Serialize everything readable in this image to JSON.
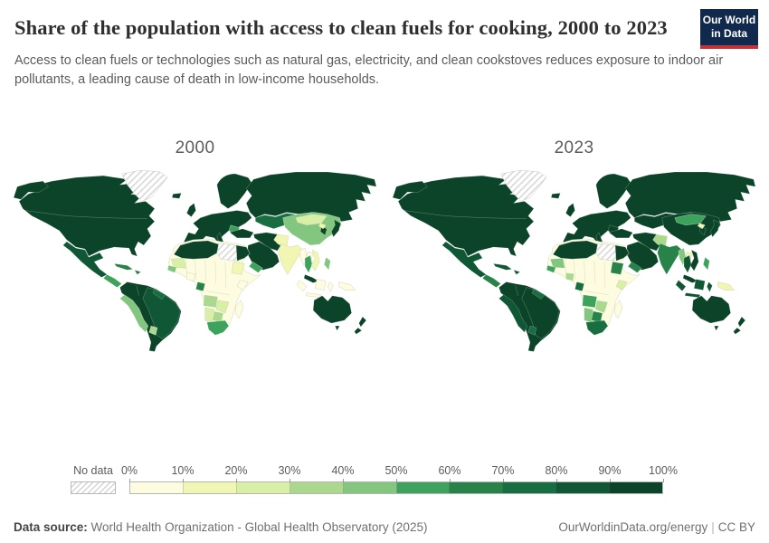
{
  "header": {
    "title": "Share of the population with access to clean fuels for cooking, 2000 to 2023",
    "subtitle": "Access to clean fuels or technologies such as natural gas, electricity, and clean cookstoves reduces exposure to indoor air pollutants, a leading cause of death in low-income households.",
    "logo_line1": "Our World",
    "logo_line2": "in Data",
    "logo_bg": "#12294e",
    "logo_accent": "#c0333b"
  },
  "maps": [
    {
      "year": "2000",
      "fills": {
        "greenland": "nodata",
        "northAmerica": 10,
        "mexico": 9,
        "centralAmerica": 6,
        "caribbean": 7,
        "southAmerica": 10,
        "brazil": 9,
        "guyanas": 8,
        "andes": 5,
        "paraguay": 4,
        "europe": 10,
        "balkans": 6,
        "russia": 10,
        "centralAsia": 8,
        "turkey": 10,
        "iranIraq": 10,
        "saudi": 10,
        "yemen": 6,
        "northAfricaWest": 10,
        "egypt": 10,
        "libya": "nodata",
        "africaBase": 1,
        "mauritania": 3,
        "senegal": 5,
        "ghana": 1,
        "sudan": 2,
        "kenya": 1,
        "gabon": 7,
        "angola": 4,
        "zambiaZimbabwe": 3,
        "namibia": 3,
        "botswana": 4,
        "southAfrica": 6,
        "madagascar": 1,
        "pakistanAfghan": 2,
        "india": 2,
        "china": 5,
        "mongolia": 3,
        "koreaJapan": 10,
        "northKorea": 2,
        "myanmar": 1,
        "thailand": 6,
        "laos": 1,
        "vietnam": 2,
        "malaysia": 10,
        "indonesia": 1,
        "philippines": 5,
        "png": 1,
        "australia": 10,
        "newZealand": 10
      }
    },
    {
      "year": "2023",
      "fills": {
        "greenland": "nodata",
        "northAmerica": 10,
        "mexico": 9,
        "centralAmerica": 7,
        "caribbean": 9,
        "southAmerica": 10,
        "brazil": 10,
        "guyanas": 8,
        "andes": 9,
        "paraguay": 8,
        "europe": 10,
        "balkans": 10,
        "russia": 10,
        "centralAsia": 10,
        "turkey": 10,
        "iranIraq": 10,
        "saudi": 10,
        "yemen": 7,
        "northAfricaWest": 10,
        "egypt": 10,
        "libya": "nodata",
        "africaBase": 1,
        "mauritania": 5,
        "senegal": 6,
        "ghana": 4,
        "sudan": 7,
        "kenya": 3,
        "gabon": 8,
        "angola": 6,
        "zambiaZimbabwe": 4,
        "namibia": 5,
        "botswana": 7,
        "southAfrica": 8,
        "madagascar": 1,
        "pakistanAfghan": 4,
        "india": 7,
        "china": 10,
        "mongolia": 6,
        "koreaJapan": 10,
        "northKorea": 2,
        "myanmar": 5,
        "thailand": 9,
        "laos": 2,
        "vietnam": 10,
        "malaysia": 10,
        "indonesia": 9,
        "philippines": 6,
        "png": 2,
        "australia": 10,
        "newZealand": 10
      }
    }
  ],
  "legend": {
    "no_data_label": "No data",
    "tick_labels": [
      "0%",
      "10%",
      "20%",
      "30%",
      "40%",
      "50%",
      "60%",
      "70%",
      "80%",
      "90%",
      "100%"
    ],
    "bin_colors": [
      "#fdfce1",
      "#f1f7b2",
      "#d8efa6",
      "#abd88d",
      "#82c67f",
      "#3da35c",
      "#27834a",
      "#186d41",
      "#0f5735",
      "#0c4429"
    ]
  },
  "footer": {
    "source_label": "Data source:",
    "source_text": " World Health Organization - Global Health Observatory (2025)",
    "right_link": "OurWorldinData.org/energy",
    "license": "CC BY"
  },
  "chart_data": {
    "type": "choropleth",
    "title": "Share of the population with access to clean fuels for cooking",
    "years": [
      "2000",
      "2023"
    ],
    "unit": "% of population",
    "legend_bins": [
      0,
      10,
      20,
      30,
      40,
      50,
      60,
      70,
      80,
      90,
      100
    ],
    "legend_position": "bottom",
    "no_data_style": "gray diagonal hatching",
    "regions": [
      {
        "name": "United States & Canada",
        "2000": 100,
        "2023": 100
      },
      {
        "name": "Greenland",
        "2000": null,
        "2023": null
      },
      {
        "name": "Mexico",
        "2000": 85,
        "2023": 87
      },
      {
        "name": "Central America",
        "2000": 55,
        "2023": 65
      },
      {
        "name": "Cuba & Caribbean",
        "2000": 65,
        "2023": 85
      },
      {
        "name": "Venezuela, Colombia, Argentina, Chile",
        "2000": 95,
        "2023": 98
      },
      {
        "name": "Brazil",
        "2000": 88,
        "2023": 96
      },
      {
        "name": "Guyana & Suriname",
        "2000": 75,
        "2023": 78
      },
      {
        "name": "Peru & Bolivia",
        "2000": 45,
        "2023": 85
      },
      {
        "name": "Paraguay",
        "2000": 35,
        "2023": 75
      },
      {
        "name": "Europe",
        "2000": 98,
        "2023": 100
      },
      {
        "name": "Balkans",
        "2000": 55,
        "2023": 95
      },
      {
        "name": "Russia",
        "2000": 97,
        "2023": 100
      },
      {
        "name": "Central Asia",
        "2000": 75,
        "2023": 95
      },
      {
        "name": "Turkey",
        "2000": 97,
        "2023": 100
      },
      {
        "name": "Iran & Iraq",
        "2000": 95,
        "2023": 98
      },
      {
        "name": "Arabian Peninsula",
        "2000": 98,
        "2023": 100
      },
      {
        "name": "Yemen",
        "2000": 55,
        "2023": 65
      },
      {
        "name": "Morocco, Algeria, Tunisia",
        "2000": 95,
        "2023": 99
      },
      {
        "name": "Egypt",
        "2000": 98,
        "2023": 100
      },
      {
        "name": "Libya",
        "2000": null,
        "2023": null
      },
      {
        "name": "Sub-Saharan Africa (most countries)",
        "2000": 5,
        "2023": 8
      },
      {
        "name": "Mauritania",
        "2000": 25,
        "2023": 45
      },
      {
        "name": "Senegal",
        "2000": 45,
        "2023": 55
      },
      {
        "name": "Ghana & Côte d'Ivoire",
        "2000": 8,
        "2023": 35
      },
      {
        "name": "Sudan",
        "2000": 15,
        "2023": 65
      },
      {
        "name": "Kenya",
        "2000": 5,
        "2023": 25
      },
      {
        "name": "Gabon",
        "2000": 65,
        "2023": 75
      },
      {
        "name": "Angola",
        "2000": 35,
        "2023": 55
      },
      {
        "name": "Zambia & Zimbabwe",
        "2000": 25,
        "2023": 35
      },
      {
        "name": "Namibia",
        "2000": 25,
        "2023": 45
      },
      {
        "name": "Botswana",
        "2000": 35,
        "2023": 65
      },
      {
        "name": "South Africa",
        "2000": 55,
        "2023": 75
      },
      {
        "name": "Madagascar",
        "2000": 2,
        "2023": 5
      },
      {
        "name": "Pakistan & Afghanistan",
        "2000": 15,
        "2023": 35
      },
      {
        "name": "India",
        "2000": 15,
        "2023": 65
      },
      {
        "name": "China",
        "2000": 45,
        "2023": 92
      },
      {
        "name": "Mongolia",
        "2000": 25,
        "2023": 55
      },
      {
        "name": "Japan & South Korea",
        "2000": 100,
        "2023": 100
      },
      {
        "name": "North Korea",
        "2000": 12,
        "2023": 15
      },
      {
        "name": "Myanmar",
        "2000": 8,
        "2023": 45
      },
      {
        "name": "Thailand",
        "2000": 55,
        "2023": 85
      },
      {
        "name": "Laos",
        "2000": 5,
        "2023": 12
      },
      {
        "name": "Vietnam",
        "2000": 15,
        "2023": 95
      },
      {
        "name": "Malaysia",
        "2000": 95,
        "2023": 100
      },
      {
        "name": "Indonesia",
        "2000": 5,
        "2023": 85
      },
      {
        "name": "Philippines",
        "2000": 45,
        "2023": 55
      },
      {
        "name": "Papua New Guinea",
        "2000": 8,
        "2023": 15
      },
      {
        "name": "Australia & New Zealand",
        "2000": 100,
        "2023": 100
      }
    ]
  }
}
